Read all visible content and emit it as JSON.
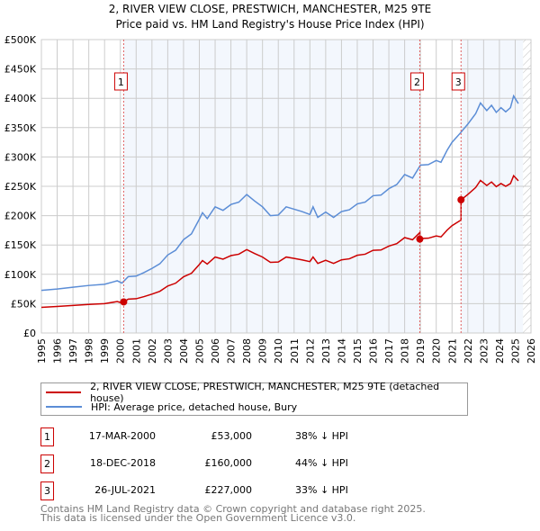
{
  "chart_data": {
    "type": "line",
    "title": "2, RIVER VIEW CLOSE, PRESTWICH, MANCHESTER, M25 9TE",
    "subtitle": "Price paid vs. HM Land Registry's House Price Index (HPI)",
    "xlim": [
      1995,
      2026
    ],
    "ylim": [
      0,
      500000
    ],
    "yticks": [
      {
        "v": 0,
        "label": "£0"
      },
      {
        "v": 50000,
        "label": "£50K"
      },
      {
        "v": 100000,
        "label": "£100K"
      },
      {
        "v": 150000,
        "label": "£150K"
      },
      {
        "v": 200000,
        "label": "£200K"
      },
      {
        "v": 250000,
        "label": "£250K"
      },
      {
        "v": 300000,
        "label": "£300K"
      },
      {
        "v": 350000,
        "label": "£350K"
      },
      {
        "v": 400000,
        "label": "£400K"
      },
      {
        "v": 450000,
        "label": "£450K"
      },
      {
        "v": 500000,
        "label": "£500K"
      }
    ],
    "xticks": [
      "1995",
      "1996",
      "1997",
      "1998",
      "1999",
      "2000",
      "2001",
      "2002",
      "2003",
      "2004",
      "2005",
      "2006",
      "2007",
      "2008",
      "2009",
      "2010",
      "2011",
      "2012",
      "2013",
      "2014",
      "2015",
      "2016",
      "2017",
      "2018",
      "2019",
      "2020",
      "2021",
      "2022",
      "2023",
      "2024",
      "2025",
      "2026"
    ],
    "hpi": {
      "name": "HPI: Average price, detached house, Bury",
      "color": "#5b8dd6",
      "x": [
        1995,
        1996,
        1997,
        1998,
        1999,
        1999.8,
        2000.1,
        2000.5,
        2001,
        2001.5,
        2002,
        2002.5,
        2003,
        2003.5,
        2004,
        2004.5,
        2005,
        2005.2,
        2005.5,
        2006,
        2006.5,
        2007,
        2007.5,
        2008,
        2008.5,
        2009,
        2009.5,
        2010,
        2010.5,
        2011,
        2011.5,
        2012,
        2012.2,
        2012.5,
        2013,
        2013.5,
        2014,
        2014.5,
        2015,
        2015.5,
        2016,
        2016.5,
        2017,
        2017.5,
        2018,
        2018.5,
        2019,
        2019.5,
        2020,
        2020.3,
        2020.7,
        2021,
        2021.5,
        2022,
        2022.5,
        2022.8,
        2023.2,
        2023.5,
        2023.8,
        2024.1,
        2024.4,
        2024.7,
        2024.9,
        2025.2
      ],
      "y": [
        72700,
        75000,
        78000,
        81000,
        83000,
        89000,
        85000,
        96000,
        97000,
        103000,
        110000,
        118000,
        133000,
        141000,
        159000,
        169000,
        194000,
        205000,
        195000,
        215000,
        209000,
        219000,
        223000,
        236000,
        225000,
        215000,
        200000,
        201000,
        215000,
        211000,
        207000,
        202000,
        215000,
        197000,
        206000,
        197000,
        207000,
        210000,
        220000,
        223000,
        234000,
        235000,
        246000,
        253000,
        270000,
        264000,
        286000,
        287000,
        294000,
        291000,
        312000,
        325000,
        340000,
        356000,
        374000,
        392000,
        379000,
        388000,
        376000,
        384000,
        377000,
        384000,
        404000,
        391000
      ]
    },
    "price_paid": {
      "name": "2, RIVER VIEW CLOSE, PRESTWICH, MANCHESTER, M25 9TE (detached house)",
      "color": "#cc0000"
    },
    "sales": [
      {
        "n": "1",
        "x": 2000.21,
        "date": "17-MAR-2000",
        "price": 53000,
        "price_label": "£53,000",
        "hpi_diff": "38% ↓ HPI"
      },
      {
        "n": "2",
        "x": 2018.96,
        "date": "18-DEC-2018",
        "price": 160000,
        "price_label": "£160,000",
        "hpi_diff": "44% ↓ HPI"
      },
      {
        "n": "3",
        "x": 2021.57,
        "date": "26-JUL-2021",
        "price": 227000,
        "price_label": "£227,000",
        "hpi_diff": "33% ↓ HPI"
      }
    ],
    "data_end": 2025.5
  },
  "legend": {
    "red": "2, RIVER VIEW CLOSE, PRESTWICH, MANCHESTER, M25 9TE (detached house)",
    "blue": "HPI: Average price, detached house, Bury"
  },
  "footer": {
    "line1": "Contains HM Land Registry data © Crown copyright and database right 2025.",
    "line2": "This data is licensed under the Open Government Licence v3.0."
  }
}
